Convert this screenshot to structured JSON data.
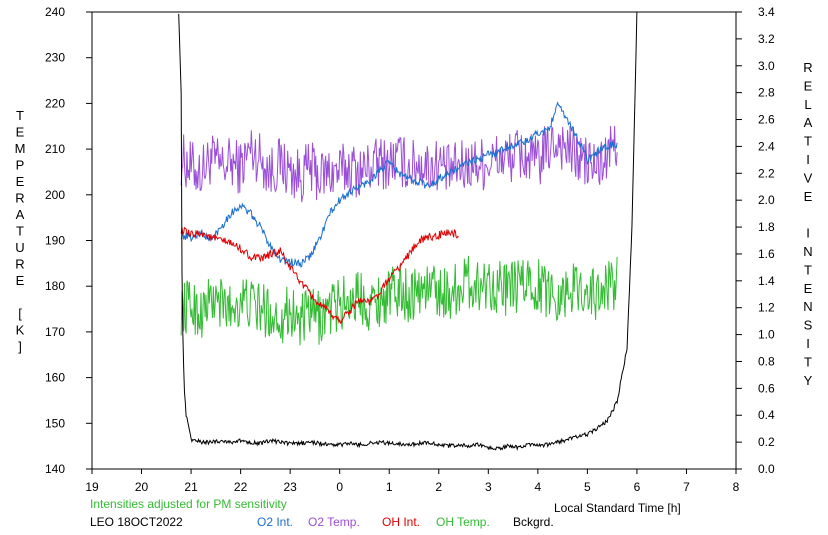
{
  "chart_data": {
    "type": "line",
    "ylabel_left": "TEMPERATURE [K]",
    "ylabel_right": "RELATIVE INTENSITY",
    "xlabel": "Local Standard Time [h]",
    "note": "Intensities adjusted for PM sensitivity",
    "station_date": "LEO 18OCT2022",
    "x_range": [
      19,
      32
    ],
    "x_ticks": [
      19,
      20,
      21,
      22,
      23,
      24,
      25,
      26,
      27,
      28,
      29,
      30,
      31,
      32
    ],
    "x_tick_labels": [
      "19",
      "20",
      "21",
      "22",
      "23",
      "0",
      "1",
      "2",
      "3",
      "4",
      "5",
      "6",
      "7",
      "8"
    ],
    "ylim_left": [
      140,
      240
    ],
    "y_ticks_left": [
      140,
      150,
      160,
      170,
      180,
      190,
      200,
      210,
      220,
      230,
      240
    ],
    "ylim_right": [
      0.0,
      3.4
    ],
    "y_ticks_right": [
      "0.0",
      "0.2",
      "0.4",
      "0.6",
      "0.8",
      "1.0",
      "1.2",
      "1.4",
      "1.6",
      "1.8",
      "2.0",
      "2.2",
      "2.4",
      "2.6",
      "2.8",
      "3.0",
      "3.2",
      "3.4"
    ],
    "legend": [
      {
        "name": "O2 Int.",
        "color": "#1a6fd0"
      },
      {
        "name": "O2 Temp.",
        "color": "#9b4fd6"
      },
      {
        "name": "OH Int.",
        "color": "#e00000"
      },
      {
        "name": "OH Temp.",
        "color": "#33bb33"
      },
      {
        "name": "Bckgrd.",
        "color": "#000000"
      }
    ],
    "series": [
      {
        "name": "O2 Temp.",
        "axis": "left",
        "color": "#9b4fd6",
        "x": [
          20.8,
          21.0,
          21.2,
          21.4,
          21.6,
          21.8,
          22.0,
          22.2,
          22.4,
          22.6,
          22.8,
          23.0,
          23.2,
          23.4,
          23.6,
          23.8,
          24.0,
          24.2,
          24.4,
          24.6,
          24.8,
          25.0,
          25.2,
          25.4,
          25.6,
          25.8,
          26.0,
          26.2,
          26.4,
          26.8,
          27.0,
          27.2,
          27.4,
          27.6,
          27.8,
          28.0,
          28.2,
          28.4,
          28.6,
          28.8,
          29.0,
          29.2,
          29.4,
          29.6
        ],
        "y": [
          208,
          206,
          205,
          208,
          206,
          207,
          206,
          210,
          208,
          205,
          207,
          205,
          204,
          206,
          204,
          205,
          205,
          206,
          205,
          206,
          207,
          207,
          208,
          206,
          207,
          206,
          207,
          205,
          206,
          207,
          207,
          208,
          208,
          209,
          208,
          207,
          210,
          212,
          210,
          208,
          207,
          206,
          208,
          212
        ],
        "amp": 6
      },
      {
        "name": "OH Temp.",
        "axis": "left",
        "color": "#33bb33",
        "x": [
          20.8,
          21.0,
          21.2,
          21.4,
          21.6,
          21.8,
          22.0,
          22.2,
          22.4,
          22.6,
          22.8,
          23.0,
          23.2,
          23.4,
          23.6,
          23.8,
          24.0,
          24.2,
          24.4,
          24.6,
          24.8,
          25.0,
          25.2,
          25.4,
          25.6,
          25.8,
          26.0,
          26.2,
          26.4,
          26.6,
          26.8,
          27.0,
          27.2,
          27.4,
          27.6,
          27.8,
          28.0,
          28.2,
          28.4,
          28.6,
          28.8,
          29.0,
          29.2,
          29.4,
          29.6
        ],
        "y": [
          175,
          176,
          174,
          177,
          176,
          175,
          177,
          176,
          175,
          174,
          173,
          175,
          172,
          174,
          173,
          175,
          176,
          177,
          178,
          176,
          177,
          178,
          179,
          178,
          179,
          180,
          179,
          178,
          180,
          181,
          180,
          181,
          180,
          179,
          180,
          181,
          180,
          179,
          178,
          179,
          180,
          179,
          178,
          180,
          181
        ],
        "amp": 6
      },
      {
        "name": "O2 Int.",
        "axis": "right",
        "color": "#1a6fd0",
        "x": [
          20.8,
          21.0,
          21.2,
          21.4,
          21.6,
          21.8,
          22.0,
          22.2,
          22.4,
          22.6,
          22.8,
          23.0,
          23.2,
          23.4,
          23.6,
          23.8,
          24.0,
          24.2,
          24.4,
          24.6,
          24.8,
          25.0,
          25.2,
          25.4,
          25.6,
          25.8,
          26.0,
          26.2,
          26.4,
          26.6,
          26.8,
          27.0,
          27.2,
          27.4,
          27.6,
          27.8,
          28.0,
          28.2,
          28.4,
          28.6,
          28.8,
          29.0,
          29.2,
          29.4,
          29.6
        ],
        "y": [
          1.74,
          1.72,
          1.76,
          1.7,
          1.8,
          1.9,
          1.96,
          1.9,
          1.8,
          1.66,
          1.56,
          1.54,
          1.52,
          1.58,
          1.72,
          1.9,
          2.0,
          2.06,
          2.1,
          2.14,
          2.22,
          2.28,
          2.2,
          2.16,
          2.14,
          2.1,
          2.16,
          2.2,
          2.24,
          2.28,
          2.3,
          2.34,
          2.36,
          2.4,
          2.42,
          2.44,
          2.5,
          2.52,
          2.7,
          2.6,
          2.46,
          2.3,
          2.36,
          2.4,
          2.42
        ],
        "amp": 0.03
      },
      {
        "name": "OH Int.",
        "axis": "right",
        "color": "#e00000",
        "x": [
          20.8,
          21.0,
          21.2,
          21.4,
          21.6,
          21.8,
          22.0,
          22.2,
          22.4,
          22.6,
          22.8,
          23.0,
          23.2,
          23.4,
          23.6,
          23.8,
          24.0,
          24.2,
          24.4,
          24.6,
          24.8,
          25.0,
          25.2,
          25.4,
          25.6,
          25.8,
          26.0,
          26.2,
          26.4
        ],
        "y": [
          1.78,
          1.74,
          1.76,
          1.72,
          1.7,
          1.68,
          1.64,
          1.58,
          1.56,
          1.6,
          1.62,
          1.5,
          1.4,
          1.3,
          1.22,
          1.16,
          1.1,
          1.18,
          1.26,
          1.24,
          1.3,
          1.42,
          1.5,
          1.6,
          1.7,
          1.72,
          1.74,
          1.76,
          1.74
        ],
        "amp": 0.03
      },
      {
        "name": "Bckgrd.",
        "axis": "right",
        "color": "#000000",
        "x": [
          20.75,
          20.8,
          20.82,
          20.86,
          20.9,
          21.0,
          21.2,
          21.4,
          21.6,
          21.8,
          22.0,
          22.2,
          22.4,
          22.6,
          22.8,
          23.0,
          23.2,
          23.4,
          23.6,
          23.8,
          24.0,
          24.2,
          24.4,
          24.6,
          24.8,
          25.0,
          25.2,
          25.4,
          25.6,
          25.8,
          26.0,
          26.2,
          26.4,
          26.6,
          26.8,
          27.0,
          27.2,
          27.4,
          27.6,
          27.8,
          28.0,
          28.2,
          28.4,
          28.6,
          28.8,
          29.0,
          29.2,
          29.4,
          29.6,
          29.8,
          29.9,
          30.0
        ],
        "y": [
          3.4,
          2.8,
          1.2,
          0.6,
          0.4,
          0.22,
          0.2,
          0.2,
          0.21,
          0.2,
          0.21,
          0.2,
          0.19,
          0.21,
          0.2,
          0.19,
          0.19,
          0.2,
          0.19,
          0.18,
          0.18,
          0.19,
          0.18,
          0.19,
          0.2,
          0.19,
          0.19,
          0.18,
          0.19,
          0.2,
          0.18,
          0.17,
          0.18,
          0.17,
          0.18,
          0.16,
          0.15,
          0.17,
          0.16,
          0.18,
          0.17,
          0.18,
          0.2,
          0.22,
          0.24,
          0.26,
          0.3,
          0.36,
          0.5,
          0.9,
          1.8,
          3.4
        ],
        "amp": 0.015
      }
    ]
  }
}
